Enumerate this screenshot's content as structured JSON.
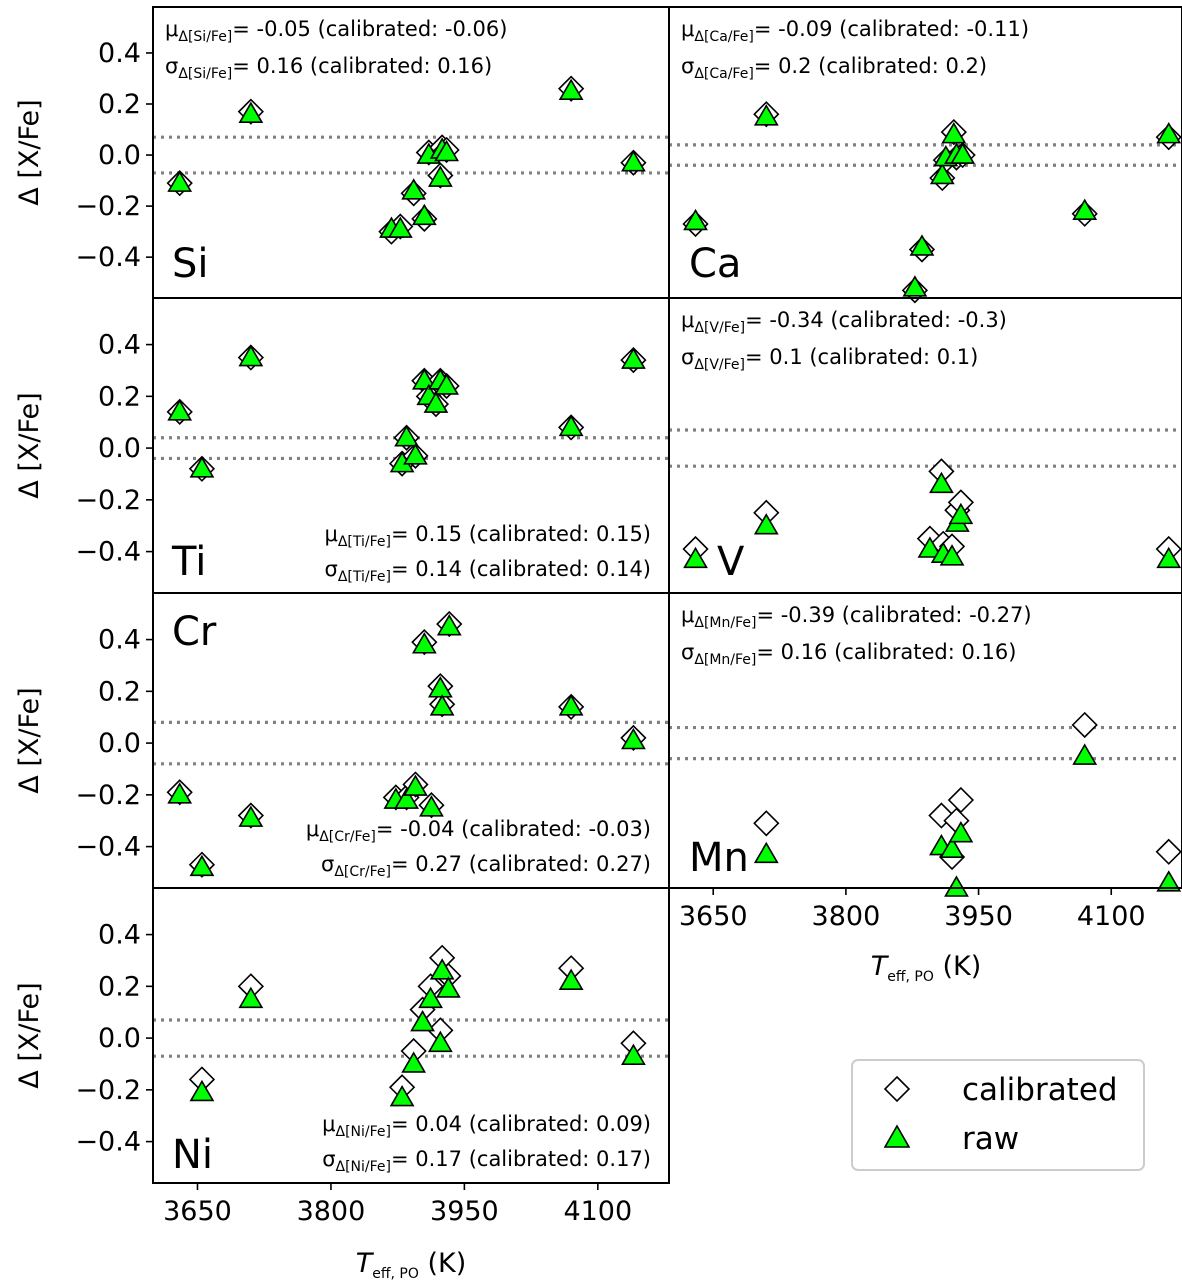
{
  "colors": {
    "raw": "#00ff00",
    "calibrated": "#ffffff",
    "guide": "#808080"
  },
  "axes": {
    "ylabel": "Δ [X/Fe]",
    "xlabel_main": "T",
    "xlabel_sub": "eff, PO",
    "xlabel_unit": " (K)",
    "xticks": [
      "3650",
      "3800",
      "3950",
      "4100"
    ],
    "yticks": [
      "0.4",
      "0.2",
      "0.0",
      "−0.2",
      "−0.4"
    ]
  },
  "legend": {
    "calibrated": "calibrated",
    "raw": "raw"
  },
  "chart_data": [
    {
      "type": "scatter",
      "element": "Si",
      "stat_mu_sub": "Δ[Si/Fe]",
      "stat_mu_val": "= -0.05 (calibrated: -0.06)",
      "stat_sigma_sub": "Δ[Si/Fe]",
      "stat_sigma_val": "= 0.16 (calibrated: 0.16)",
      "bands": [
        0.07,
        -0.07
      ],
      "xlim": [
        3600,
        4180
      ],
      "ylim": [
        -0.56,
        0.58
      ],
      "points": [
        {
          "x": 3630,
          "raw": -0.11,
          "cal": -0.11
        },
        {
          "x": 3710,
          "raw": 0.16,
          "cal": 0.17
        },
        {
          "x": 3868,
          "raw": -0.29,
          "cal": -0.3
        },
        {
          "x": 3878,
          "raw": -0.29,
          "cal": -0.28
        },
        {
          "x": 3893,
          "raw": -0.14,
          "cal": -0.15
        },
        {
          "x": 3905,
          "raw": -0.24,
          "cal": -0.25
        },
        {
          "x": 3910,
          "raw": 0.0,
          "cal": 0.01
        },
        {
          "x": 3923,
          "raw": -0.09,
          "cal": -0.08
        },
        {
          "x": 3925,
          "raw": 0.02,
          "cal": 0.03
        },
        {
          "x": 3930,
          "raw": 0.01,
          "cal": 0.02
        },
        {
          "x": 4070,
          "raw": 0.25,
          "cal": 0.26
        },
        {
          "x": 4140,
          "raw": -0.03,
          "cal": -0.03
        }
      ]
    },
    {
      "type": "scatter",
      "element": "Ca",
      "stat_mu_sub": "Δ[Ca/Fe]",
      "stat_mu_val": "= -0.09 (calibrated: -0.11)",
      "stat_sigma_sub": "Δ[Ca/Fe]",
      "stat_sigma_val": "= 0.2 (calibrated: 0.2)",
      "bands": [
        0.04,
        -0.04
      ],
      "xlim": [
        3600,
        4180
      ],
      "ylim": [
        -0.56,
        0.58
      ],
      "points": [
        {
          "x": 3630,
          "raw": -0.26,
          "cal": -0.27
        },
        {
          "x": 3710,
          "raw": 0.15,
          "cal": 0.16
        },
        {
          "x": 3878,
          "raw": -0.52,
          "cal": -0.53
        },
        {
          "x": 3886,
          "raw": -0.36,
          "cal": -0.37
        },
        {
          "x": 3909,
          "raw": -0.08,
          "cal": -0.09
        },
        {
          "x": 3913,
          "raw": -0.01,
          "cal": -0.02
        },
        {
          "x": 3922,
          "raw": 0.08,
          "cal": 0.09
        },
        {
          "x": 3925,
          "raw": 0.0,
          "cal": -0.01
        },
        {
          "x": 3932,
          "raw": 0.0,
          "cal": 0.0
        },
        {
          "x": 4070,
          "raw": -0.22,
          "cal": -0.23
        },
        {
          "x": 4165,
          "raw": 0.08,
          "cal": 0.07
        }
      ]
    },
    {
      "type": "scatter",
      "element": "Ti",
      "stat_mu_sub": "Δ[Ti/Fe]",
      "stat_mu_val": "= 0.15 (calibrated: 0.15)",
      "stat_sigma_sub": "Δ[Ti/Fe]",
      "stat_sigma_val": "= 0.14 (calibrated: 0.14)",
      "bands": [
        0.04,
        -0.04
      ],
      "xlim": [
        3600,
        4180
      ],
      "ylim": [
        -0.56,
        0.58
      ],
      "points": [
        {
          "x": 3630,
          "raw": 0.14,
          "cal": 0.14
        },
        {
          "x": 3655,
          "raw": -0.08,
          "cal": -0.08
        },
        {
          "x": 3710,
          "raw": 0.35,
          "cal": 0.35
        },
        {
          "x": 3880,
          "raw": -0.06,
          "cal": -0.06
        },
        {
          "x": 3885,
          "raw": 0.04,
          "cal": 0.04
        },
        {
          "x": 3895,
          "raw": -0.03,
          "cal": -0.03
        },
        {
          "x": 3905,
          "raw": 0.26,
          "cal": 0.26
        },
        {
          "x": 3910,
          "raw": 0.2,
          "cal": 0.2
        },
        {
          "x": 3918,
          "raw": 0.17,
          "cal": 0.17
        },
        {
          "x": 3923,
          "raw": 0.26,
          "cal": 0.26
        },
        {
          "x": 3930,
          "raw": 0.24,
          "cal": 0.24
        },
        {
          "x": 4070,
          "raw": 0.08,
          "cal": 0.08
        },
        {
          "x": 4140,
          "raw": 0.34,
          "cal": 0.34
        }
      ]
    },
    {
      "type": "scatter",
      "element": "V",
      "stat_mu_sub": "Δ[V/Fe]",
      "stat_mu_val": "= -0.34 (calibrated: -0.3)",
      "stat_sigma_sub": "Δ[V/Fe]",
      "stat_sigma_val": "= 0.1 (calibrated: 0.1)",
      "bands": [
        0.07,
        -0.07
      ],
      "xlim": [
        3600,
        4180
      ],
      "ylim": [
        -0.56,
        0.58
      ],
      "points": [
        {
          "x": 3630,
          "raw": -0.43,
          "cal": -0.39
        },
        {
          "x": 3710,
          "raw": -0.3,
          "cal": -0.25
        },
        {
          "x": 3895,
          "raw": -0.39,
          "cal": -0.35
        },
        {
          "x": 3908,
          "raw": -0.14,
          "cal": -0.09
        },
        {
          "x": 3910,
          "raw": -0.41,
          "cal": -0.37
        },
        {
          "x": 3920,
          "raw": -0.42,
          "cal": -0.38
        },
        {
          "x": 3926,
          "raw": -0.29,
          "cal": -0.24
        },
        {
          "x": 3930,
          "raw": -0.26,
          "cal": -0.21
        },
        {
          "x": 4165,
          "raw": -0.43,
          "cal": -0.39
        }
      ]
    },
    {
      "type": "scatter",
      "element": "Cr",
      "stat_mu_sub": "Δ[Cr/Fe]",
      "stat_mu_val": "= -0.04 (calibrated: -0.03)",
      "stat_sigma_sub": "Δ[Cr/Fe]",
      "stat_sigma_val": "= 0.27 (calibrated: 0.27)",
      "bands": [
        0.08,
        -0.08
      ],
      "xlim": [
        3600,
        4180
      ],
      "ylim": [
        -0.56,
        0.58
      ],
      "points": [
        {
          "x": 3630,
          "raw": -0.2,
          "cal": -0.19
        },
        {
          "x": 3655,
          "raw": -0.48,
          "cal": -0.47
        },
        {
          "x": 3710,
          "raw": -0.29,
          "cal": -0.28
        },
        {
          "x": 3873,
          "raw": -0.22,
          "cal": -0.21
        },
        {
          "x": 3885,
          "raw": -0.22,
          "cal": -0.21
        },
        {
          "x": 3895,
          "raw": -0.17,
          "cal": -0.16
        },
        {
          "x": 3905,
          "raw": 0.38,
          "cal": 0.39
        },
        {
          "x": 3913,
          "raw": -0.25,
          "cal": -0.24
        },
        {
          "x": 3923,
          "raw": 0.21,
          "cal": 0.22
        },
        {
          "x": 3925,
          "raw": 0.14,
          "cal": 0.15
        },
        {
          "x": 3933,
          "raw": 0.45,
          "cal": 0.46
        },
        {
          "x": 4070,
          "raw": 0.14,
          "cal": 0.14
        },
        {
          "x": 4140,
          "raw": 0.01,
          "cal": 0.02
        }
      ]
    },
    {
      "type": "scatter",
      "element": "Mn",
      "stat_mu_sub": "Δ[Mn/Fe]",
      "stat_mu_val": "= -0.39 (calibrated: -0.27)",
      "stat_sigma_sub": "Δ[Mn/Fe]",
      "stat_sigma_val": "= 0.16 (calibrated: 0.16)",
      "bands": [
        0.06,
        -0.06
      ],
      "xlim": [
        3600,
        4180
      ],
      "ylim": [
        -0.56,
        0.58
      ],
      "points": [
        {
          "x": 3710,
          "raw": -0.43,
          "cal": -0.31
        },
        {
          "x": 3908,
          "raw": -0.4,
          "cal": -0.28
        },
        {
          "x": 3920,
          "raw": -0.41,
          "cal": -0.44
        },
        {
          "x": 3925,
          "raw": -0.56,
          "cal": -0.3
        },
        {
          "x": 3930,
          "raw": -0.35,
          "cal": -0.22
        },
        {
          "x": 4070,
          "raw": -0.05,
          "cal": 0.07
        },
        {
          "x": 4165,
          "raw": -0.54,
          "cal": -0.42
        }
      ]
    },
    {
      "type": "scatter",
      "element": "Ni",
      "stat_mu_sub": "Δ[Ni/Fe]",
      "stat_mu_val": "= 0.04 (calibrated: 0.09)",
      "stat_sigma_sub": "Δ[Ni/Fe]",
      "stat_sigma_val": "= 0.17 (calibrated: 0.17)",
      "bands": [
        0.07,
        -0.07
      ],
      "xlim": [
        3600,
        4180
      ],
      "ylim": [
        -0.56,
        0.58
      ],
      "points": [
        {
          "x": 3655,
          "raw": -0.21,
          "cal": -0.16
        },
        {
          "x": 3710,
          "raw": 0.15,
          "cal": 0.2
        },
        {
          "x": 3880,
          "raw": -0.23,
          "cal": -0.19
        },
        {
          "x": 3893,
          "raw": -0.1,
          "cal": -0.05
        },
        {
          "x": 3903,
          "raw": 0.06,
          "cal": 0.11
        },
        {
          "x": 3912,
          "raw": 0.15,
          "cal": 0.2
        },
        {
          "x": 3923,
          "raw": -0.02,
          "cal": 0.03
        },
        {
          "x": 3925,
          "raw": 0.26,
          "cal": 0.31
        },
        {
          "x": 3932,
          "raw": 0.19,
          "cal": 0.24
        },
        {
          "x": 4070,
          "raw": 0.22,
          "cal": 0.27
        },
        {
          "x": 4140,
          "raw": -0.07,
          "cal": -0.02
        }
      ]
    }
  ]
}
